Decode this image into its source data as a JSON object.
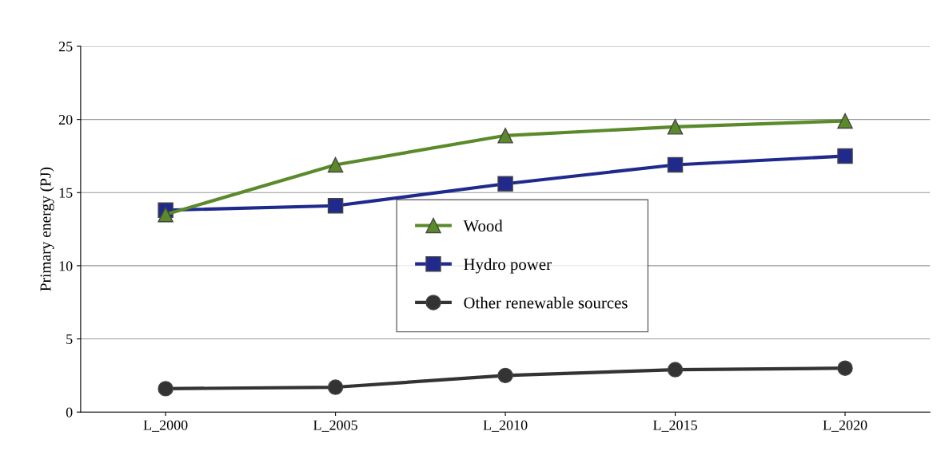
{
  "chart_data": {
    "type": "line",
    "ylabel": "Primary energy (PJ)",
    "categories": [
      "L_2000",
      "L_2005",
      "L_2010",
      "L_2015",
      "L_2020"
    ],
    "series": [
      {
        "name": "Wood",
        "color": "#5a8a2a",
        "marker": "triangle",
        "values": [
          13.5,
          16.9,
          18.9,
          19.5,
          19.9
        ]
      },
      {
        "name": "Hydro power",
        "color": "#1f2a8c",
        "marker": "square",
        "values": [
          13.8,
          14.1,
          15.6,
          16.9,
          17.5
        ]
      },
      {
        "name": "Other renewable sources",
        "color": "#333333",
        "marker": "circle",
        "values": [
          1.6,
          1.7,
          2.5,
          2.9,
          3.0
        ]
      }
    ],
    "ylim": [
      0,
      25
    ],
    "yticks": [
      0,
      5,
      10,
      15,
      20,
      25
    ],
    "grid": "y",
    "legend": "center",
    "line_style": "solid"
  }
}
